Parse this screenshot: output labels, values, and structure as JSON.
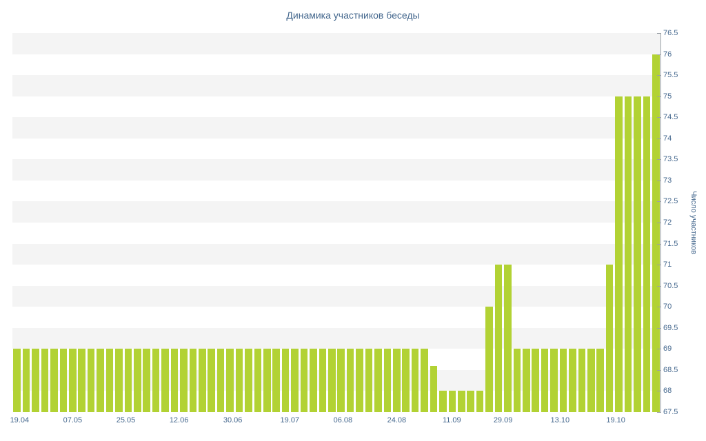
{
  "chart_data": {
    "type": "bar",
    "title": "Динамика участников беседы",
    "xlabel": "",
    "ylabel": "Число участников",
    "ylim": [
      67.5,
      76.5
    ],
    "y_tick_step": 0.5,
    "y_ticks": [
      "67.5",
      "68",
      "68.5",
      "69",
      "69.5",
      "70",
      "70.5",
      "71",
      "71.5",
      "72",
      "72.5",
      "73",
      "73.5",
      "74",
      "74.5",
      "75",
      "75.5",
      "76",
      "76.5"
    ],
    "x_ticks": [
      {
        "label": "19.04",
        "pos": 0.011
      },
      {
        "label": "07.05",
        "pos": 0.093
      },
      {
        "label": "25.05",
        "pos": 0.175
      },
      {
        "label": "12.06",
        "pos": 0.257
      },
      {
        "label": "30.06",
        "pos": 0.34
      },
      {
        "label": "19.07",
        "pos": 0.428
      },
      {
        "label": "06.08",
        "pos": 0.51
      },
      {
        "label": "24.08",
        "pos": 0.593
      },
      {
        "label": "11.09",
        "pos": 0.678
      },
      {
        "label": "29.09",
        "pos": 0.757
      },
      {
        "label": "13.10",
        "pos": 0.845
      },
      {
        "label": "19.10",
        "pos": 0.931
      }
    ],
    "values": [
      69,
      69,
      69,
      69,
      69,
      69,
      69,
      69,
      69,
      69,
      69,
      69,
      69,
      69,
      69,
      69,
      69,
      69,
      69,
      69,
      69,
      69,
      69,
      69,
      69,
      69,
      69,
      69,
      69,
      69,
      69,
      69,
      69,
      69,
      69,
      69,
      69,
      69,
      69,
      69,
      69,
      69,
      69,
      69,
      69,
      68.6,
      68,
      68,
      68,
      68,
      68,
      70,
      71,
      71,
      69,
      69,
      69,
      69,
      69,
      69,
      69,
      69,
      69,
      69,
      71,
      75,
      75,
      75,
      75,
      76
    ],
    "legend": "none",
    "grid": "alternating-bands",
    "bar_color": "#b2d234",
    "band_color": "#f4f4f4",
    "label_color": "#45688e",
    "axis_color": "#9aa0a6"
  }
}
